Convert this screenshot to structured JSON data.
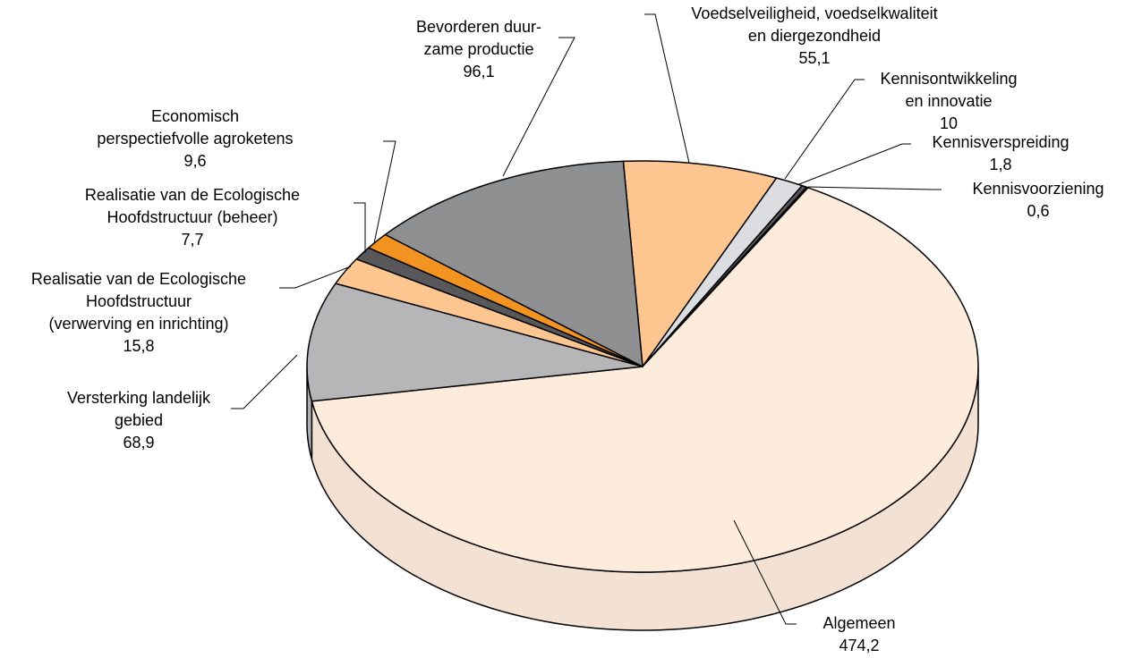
{
  "chart_data": {
    "type": "pie",
    "categories": [
      "Voedselveiligheid, voedselkwaliteit\nen diergezondheid",
      "Kennisontwikkeling\nen innovatie",
      "Kennisverspreiding",
      "Kennisvoorziening",
      "Algemeen",
      "Versterking landelijk\ngebied",
      "Realisatie van de Ecologische\nHoofdstructuur\n(verwerving en inrichting)",
      "Realisatie van de Ecologische\nHoofdstructuur (beheer)",
      "Economisch\nperspectiefvolle agroketens",
      "Bevorderen duur-\nzame productie"
    ],
    "values": [
      55.1,
      10,
      1.8,
      0.6,
      474.2,
      68.9,
      15.8,
      7.7,
      9.6,
      96.1
    ],
    "value_labels": [
      "55,1",
      "10",
      "1,8",
      "0,6",
      "474,2",
      "68,9",
      "15,8",
      "7,7",
      "9,6",
      "96,1"
    ],
    "colors": [
      "#fdc58f",
      "#dcdde1",
      "#58585a",
      "#111111",
      "#fdebdc",
      "#b6b6b8",
      "#fdc58f",
      "#58585a",
      "#f39422",
      "#8f9092"
    ]
  }
}
